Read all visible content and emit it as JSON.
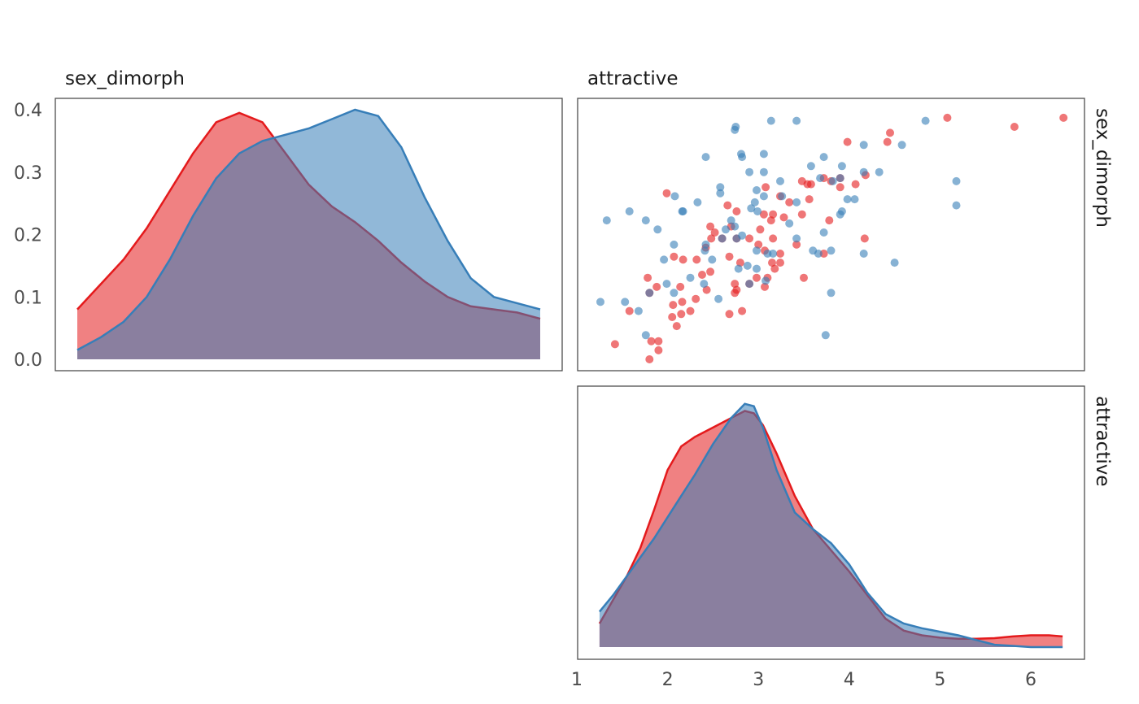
{
  "chart_data": {
    "type": "pair_plot",
    "variables": [
      "sex_dimorph",
      "attractive"
    ],
    "groups": [
      {
        "color": "#E41A1C"
      },
      {
        "color": "#377EB8"
      }
    ],
    "panels": [
      {
        "id": "density_sex_dimorph",
        "type": "area",
        "title": "sex_dimorph",
        "ylim": [
          0,
          0.4
        ],
        "y_ticks": [
          "0.0",
          "0.1",
          "0.2",
          "0.3",
          "0.4"
        ],
        "xlim": [
          0,
          1
        ],
        "series": [
          {
            "group": 0,
            "x": [
              0.0,
              0.05,
              0.1,
              0.15,
              0.2,
              0.25,
              0.3,
              0.35,
              0.4,
              0.45,
              0.5,
              0.55,
              0.6,
              0.65,
              0.7,
              0.75,
              0.8,
              0.85,
              0.9,
              0.95,
              1.0
            ],
            "y": [
              0.08,
              0.12,
              0.16,
              0.21,
              0.27,
              0.33,
              0.38,
              0.395,
              0.38,
              0.33,
              0.28,
              0.245,
              0.22,
              0.19,
              0.155,
              0.125,
              0.1,
              0.085,
              0.08,
              0.075,
              0.065
            ]
          },
          {
            "group": 1,
            "x": [
              0.0,
              0.05,
              0.1,
              0.15,
              0.2,
              0.25,
              0.3,
              0.35,
              0.4,
              0.45,
              0.5,
              0.55,
              0.6,
              0.65,
              0.7,
              0.75,
              0.8,
              0.85,
              0.9,
              0.95,
              1.0
            ],
            "y": [
              0.015,
              0.035,
              0.06,
              0.1,
              0.16,
              0.23,
              0.29,
              0.33,
              0.35,
              0.36,
              0.37,
              0.385,
              0.4,
              0.39,
              0.34,
              0.26,
              0.19,
              0.13,
              0.1,
              0.09,
              0.08
            ]
          }
        ]
      },
      {
        "id": "scatter_attractive_sex_dimorph",
        "type": "scatter",
        "title": "attractive",
        "row_label": "sex_dimorph",
        "xlim": [
          1,
          6.6
        ],
        "ylim": [
          0,
          0.42
        ],
        "series": [
          {
            "group": 0,
            "points": [
              [
                1.42,
                0.025
              ],
              [
                1.58,
                0.08
              ],
              [
                1.78,
                0.135
              ],
              [
                1.8,
                0.11
              ],
              [
                1.8,
                0.0
              ],
              [
                1.82,
                0.03
              ],
              [
                1.88,
                0.12
              ],
              [
                1.9,
                0.03
              ],
              [
                1.9,
                0.015
              ],
              [
                1.99,
                0.275
              ],
              [
                2.05,
                0.07
              ],
              [
                2.06,
                0.09
              ],
              [
                2.07,
                0.17
              ],
              [
                2.1,
                0.055
              ],
              [
                2.14,
                0.12
              ],
              [
                2.15,
                0.075
              ],
              [
                2.16,
                0.095
              ],
              [
                2.17,
                0.165
              ],
              [
                2.25,
                0.08
              ],
              [
                2.31,
                0.1
              ],
              [
                2.32,
                0.165
              ],
              [
                2.38,
                0.14
              ],
              [
                2.42,
                0.185
              ],
              [
                2.43,
                0.115
              ],
              [
                2.47,
                0.145
              ],
              [
                2.48,
                0.2
              ],
              [
                2.47,
                0.22
              ],
              [
                2.52,
                0.21
              ],
              [
                2.6,
                0.2
              ],
              [
                2.66,
                0.255
              ],
              [
                2.68,
                0.075
              ],
              [
                2.68,
                0.17
              ],
              [
                2.7,
                0.22
              ],
              [
                2.74,
                0.125
              ],
              [
                2.74,
                0.11
              ],
              [
                2.76,
                0.115
              ],
              [
                2.76,
                0.2
              ],
              [
                2.76,
                0.245
              ],
              [
                2.8,
                0.16
              ],
              [
                2.82,
                0.08
              ],
              [
                2.9,
                0.125
              ],
              [
                2.9,
                0.2
              ],
              [
                2.98,
                0.135
              ],
              [
                3.0,
                0.19
              ],
              [
                3.02,
                0.215
              ],
              [
                3.06,
                0.24
              ],
              [
                3.07,
                0.12
              ],
              [
                3.07,
                0.18
              ],
              [
                3.08,
                0.285
              ],
              [
                3.1,
                0.135
              ],
              [
                3.14,
                0.23
              ],
              [
                3.15,
                0.16
              ],
              [
                3.16,
                0.24
              ],
              [
                3.16,
                0.2
              ],
              [
                3.18,
                0.15
              ],
              [
                3.24,
                0.16
              ],
              [
                3.24,
                0.175
              ],
              [
                3.24,
                0.27
              ],
              [
                3.28,
                0.235
              ],
              [
                3.34,
                0.26
              ],
              [
                3.42,
                0.19
              ],
              [
                3.48,
                0.295
              ],
              [
                3.48,
                0.24
              ],
              [
                3.5,
                0.135
              ],
              [
                3.54,
                0.29
              ],
              [
                3.56,
                0.265
              ],
              [
                3.58,
                0.29
              ],
              [
                3.72,
                0.175
              ],
              [
                3.72,
                0.3
              ],
              [
                3.78,
                0.23
              ],
              [
                3.8,
                0.295
              ],
              [
                3.9,
                0.285
              ],
              [
                3.9,
                0.3
              ],
              [
                3.98,
                0.36
              ],
              [
                4.07,
                0.29
              ],
              [
                4.17,
                0.2
              ],
              [
                4.18,
                0.305
              ],
              [
                4.42,
                0.36
              ],
              [
                4.45,
                0.375
              ],
              [
                5.08,
                0.4
              ],
              [
                5.82,
                0.385
              ],
              [
                6.36,
                0.4
              ]
            ]
          },
          {
            "group": 1,
            "points": [
              [
                1.26,
                0.095
              ],
              [
                1.33,
                0.23
              ],
              [
                1.53,
                0.095
              ],
              [
                1.58,
                0.245
              ],
              [
                1.68,
                0.08
              ],
              [
                1.76,
                0.23
              ],
              [
                1.76,
                0.04
              ],
              [
                1.8,
                0.11
              ],
              [
                1.89,
                0.215
              ],
              [
                1.96,
                0.165
              ],
              [
                1.99,
                0.125
              ],
              [
                2.07,
                0.11
              ],
              [
                2.07,
                0.19
              ],
              [
                2.08,
                0.27
              ],
              [
                2.16,
                0.245
              ],
              [
                2.17,
                0.245
              ],
              [
                2.25,
                0.135
              ],
              [
                2.33,
                0.26
              ],
              [
                2.4,
                0.125
              ],
              [
                2.41,
                0.18
              ],
              [
                2.42,
                0.19
              ],
              [
                2.42,
                0.335
              ],
              [
                2.49,
                0.165
              ],
              [
                2.56,
                0.1
              ],
              [
                2.58,
                0.285
              ],
              [
                2.58,
                0.275
              ],
              [
                2.6,
                0.2
              ],
              [
                2.64,
                0.215
              ],
              [
                2.7,
                0.23
              ],
              [
                2.74,
                0.22
              ],
              [
                2.74,
                0.38
              ],
              [
                2.75,
                0.385
              ],
              [
                2.76,
                0.2
              ],
              [
                2.78,
                0.15
              ],
              [
                2.81,
                0.34
              ],
              [
                2.82,
                0.335
              ],
              [
                2.82,
                0.205
              ],
              [
                2.88,
                0.155
              ],
              [
                2.9,
                0.31
              ],
              [
                2.9,
                0.125
              ],
              [
                2.92,
                0.25
              ],
              [
                2.96,
                0.26
              ],
              [
                2.98,
                0.18
              ],
              [
                2.98,
                0.15
              ],
              [
                2.98,
                0.28
              ],
              [
                2.99,
                0.245
              ],
              [
                3.06,
                0.34
              ],
              [
                3.06,
                0.31
              ],
              [
                3.06,
                0.27
              ],
              [
                3.08,
                0.13
              ],
              [
                3.1,
                0.175
              ],
              [
                3.14,
                0.395
              ],
              [
                3.16,
                0.175
              ],
              [
                3.24,
                0.295
              ],
              [
                3.26,
                0.27
              ],
              [
                3.34,
                0.225
              ],
              [
                3.42,
                0.2
              ],
              [
                3.42,
                0.26
              ],
              [
                3.42,
                0.395
              ],
              [
                3.58,
                0.32
              ],
              [
                3.6,
                0.18
              ],
              [
                3.66,
                0.175
              ],
              [
                3.68,
                0.3
              ],
              [
                3.72,
                0.335
              ],
              [
                3.72,
                0.21
              ],
              [
                3.74,
                0.04
              ],
              [
                3.8,
                0.18
              ],
              [
                3.8,
                0.11
              ],
              [
                3.82,
                0.295
              ],
              [
                3.9,
                0.24
              ],
              [
                3.9,
                0.3
              ],
              [
                3.92,
                0.245
              ],
              [
                3.92,
                0.32
              ],
              [
                3.98,
                0.265
              ],
              [
                4.06,
                0.265
              ],
              [
                4.16,
                0.31
              ],
              [
                4.16,
                0.355
              ],
              [
                4.16,
                0.175
              ],
              [
                4.33,
                0.31
              ],
              [
                4.5,
                0.16
              ],
              [
                4.58,
                0.355
              ],
              [
                4.84,
                0.395
              ],
              [
                5.18,
                0.295
              ],
              [
                5.18,
                0.255
              ]
            ]
          }
        ]
      },
      {
        "id": "density_attractive",
        "type": "area",
        "row_label": "attractive",
        "xlim": [
          1,
          6.6
        ],
        "x_ticks": [
          "1",
          "2",
          "3",
          "4",
          "5",
          "6"
        ],
        "ylim": [
          0,
          1.05
        ],
        "series": [
          {
            "group": 0,
            "x": [
              1.25,
              1.4,
              1.55,
              1.7,
              1.85,
              2.0,
              2.15,
              2.3,
              2.5,
              2.7,
              2.85,
              2.95,
              3.05,
              3.2,
              3.4,
              3.6,
              3.8,
              4.0,
              4.2,
              4.4,
              4.6,
              4.8,
              5.0,
              5.2,
              5.4,
              5.6,
              5.8,
              6.0,
              6.2,
              6.35
            ],
            "y": [
              0.1,
              0.2,
              0.3,
              0.42,
              0.58,
              0.75,
              0.85,
              0.89,
              0.93,
              0.97,
              1.0,
              0.99,
              0.94,
              0.82,
              0.64,
              0.5,
              0.41,
              0.32,
              0.22,
              0.12,
              0.07,
              0.05,
              0.04,
              0.035,
              0.035,
              0.038,
              0.045,
              0.05,
              0.05,
              0.045
            ]
          },
          {
            "group": 1,
            "x": [
              1.25,
              1.4,
              1.55,
              1.7,
              1.85,
              2.0,
              2.15,
              2.3,
              2.5,
              2.7,
              2.85,
              2.95,
              3.05,
              3.2,
              3.4,
              3.6,
              3.8,
              4.0,
              4.2,
              4.4,
              4.6,
              4.8,
              5.0,
              5.2,
              5.4,
              5.6,
              5.8,
              6.0,
              6.2,
              6.35
            ],
            "y": [
              0.15,
              0.22,
              0.3,
              0.38,
              0.46,
              0.55,
              0.64,
              0.73,
              0.86,
              0.97,
              1.03,
              1.02,
              0.93,
              0.75,
              0.57,
              0.5,
              0.44,
              0.35,
              0.23,
              0.14,
              0.1,
              0.08,
              0.065,
              0.05,
              0.03,
              0.01,
              0.005,
              0.0,
              0.0,
              0.0
            ]
          }
        ]
      }
    ]
  }
}
